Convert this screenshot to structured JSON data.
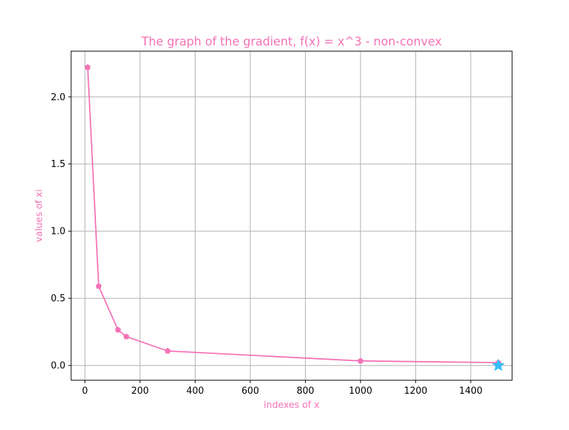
{
  "chart_data": {
    "type": "line",
    "title": "The graph of the gradient, f(x) = x^3 - non-convex",
    "xlabel": "indexes of x",
    "ylabel": "values of xi",
    "xlim": [
      -50,
      1550
    ],
    "ylim": [
      -0.11,
      2.34
    ],
    "x_ticks": [
      0,
      200,
      400,
      600,
      800,
      1000,
      1200,
      1400
    ],
    "x_tick_labels": [
      "0",
      "200",
      "400",
      "600",
      "800",
      "1000",
      "1200",
      "1400"
    ],
    "y_ticks": [
      0.0,
      0.5,
      1.0,
      1.5,
      2.0
    ],
    "y_tick_labels": [
      "0.0",
      "0.5",
      "1.0",
      "1.5",
      "2.0"
    ],
    "grid": true,
    "colors": {
      "series": "#f472b6",
      "text": "#f472b6",
      "star": "#38bdf8",
      "grid": "#b0b0b0",
      "axes": "#000000"
    },
    "series": [
      {
        "x": [
          10,
          50,
          120,
          150,
          300,
          1000,
          1500
        ],
        "y": [
          2.22,
          0.59,
          0.265,
          0.215,
          0.108,
          0.034,
          0.021
        ],
        "marker": "pentagon"
      }
    ],
    "highlight_point": {
      "x": 1500,
      "y": 0.0,
      "marker": "star"
    }
  }
}
